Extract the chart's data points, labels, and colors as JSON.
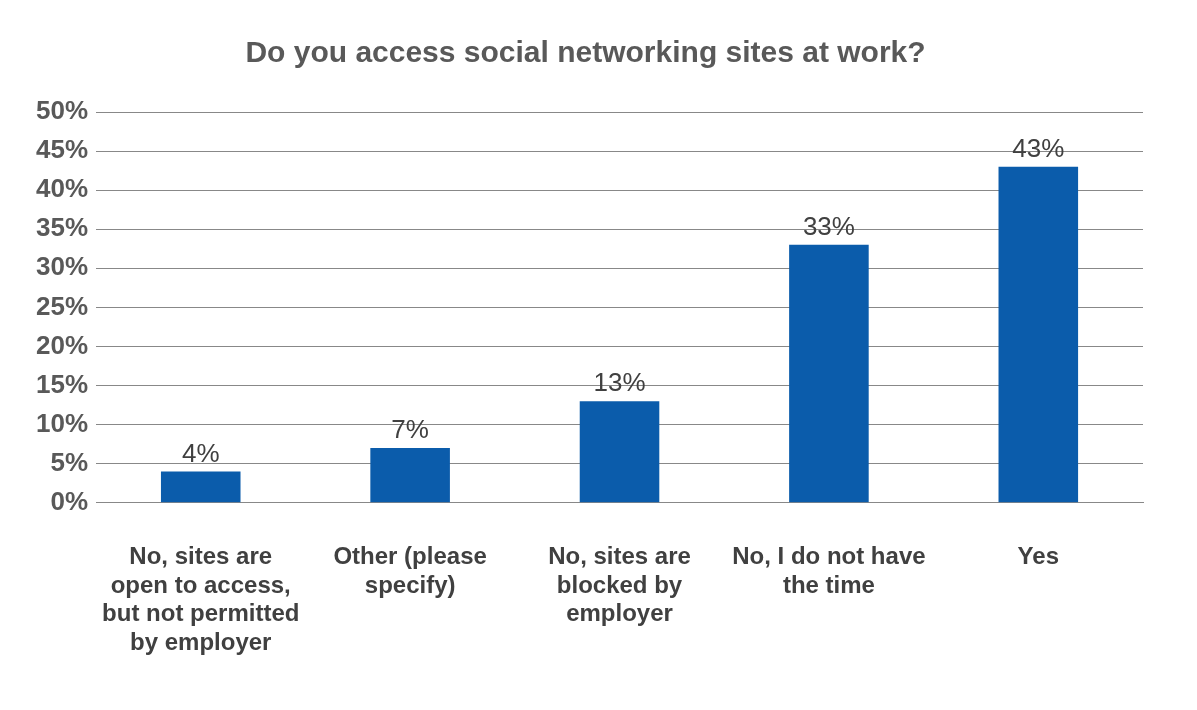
{
  "chart_data": {
    "type": "bar",
    "title": "Do you access social networking sites at work?",
    "categories": [
      "No, sites are open to access, but not permitted by employer",
      "Other (please specify)",
      "No, sites are blocked by employer",
      "No, I do not have the time",
      "Yes"
    ],
    "values": [
      4,
      7,
      13,
      33,
      43
    ],
    "value_labels": [
      "4%",
      "7%",
      "13%",
      "33%",
      "43%"
    ],
    "color": "#0b5cab",
    "ylim": [
      0,
      50
    ],
    "yticks": [
      {
        "value": 0,
        "label": "0%"
      },
      {
        "value": 5,
        "label": "5%"
      },
      {
        "value": 10,
        "label": "10%"
      },
      {
        "value": 15,
        "label": "15%"
      },
      {
        "value": 20,
        "label": "20%"
      },
      {
        "value": 25,
        "label": "25%"
      },
      {
        "value": 30,
        "label": "30%"
      },
      {
        "value": 35,
        "label": "35%"
      },
      {
        "value": 40,
        "label": "40%"
      },
      {
        "value": 45,
        "label": "45%"
      },
      {
        "value": 50,
        "label": "50%"
      }
    ],
    "grid": "y",
    "legend": false
  }
}
